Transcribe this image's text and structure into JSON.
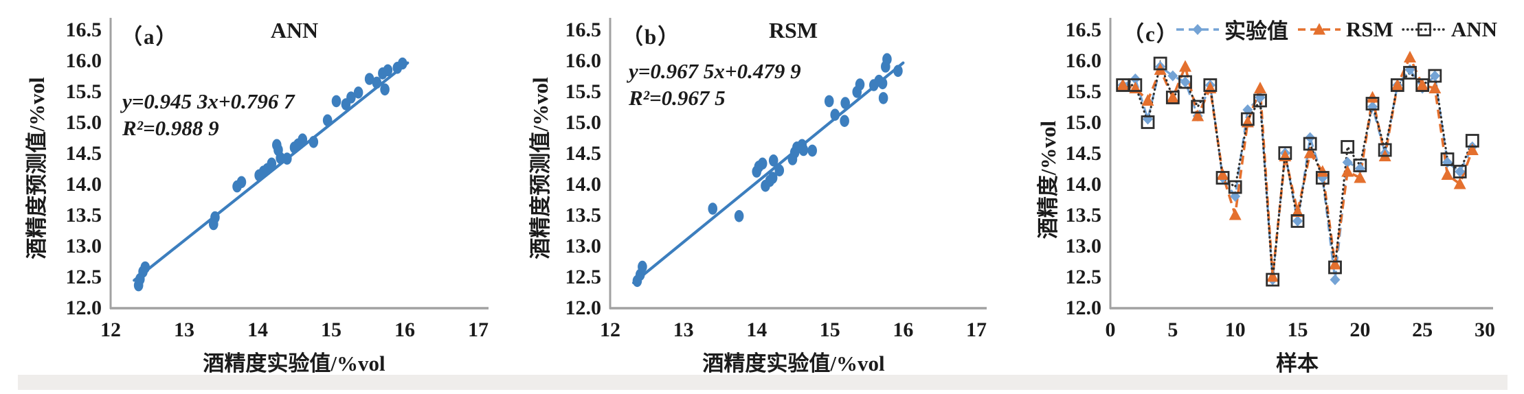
{
  "colors": {
    "axis": "#a2a2a2",
    "text": "#1b1b1b",
    "scatter_blue": "#3c7ebe",
    "experimental_blue": "#74a3d5",
    "rsm_orange": "#e4702e",
    "ann_dark": "#2e2e2e"
  },
  "chart_data": [
    {
      "type": "scatter",
      "panel_label": "（a）",
      "title": "ANN",
      "equation": "y=0.945 3x+0.796 7",
      "r_squared": "R²=0.988 9",
      "xlabel": "酒精度实验值/%vol",
      "ylabel": "酒精度预测值/%vol",
      "xlim": [
        12,
        17
      ],
      "ylim": [
        12.0,
        16.5
      ],
      "xticks": [
        12,
        13,
        14,
        15,
        16,
        17
      ],
      "yticks": [
        12.0,
        12.5,
        13.0,
        13.5,
        14.0,
        14.5,
        15.0,
        15.5,
        16.0,
        16.5
      ],
      "marker_color": "#3c7ebe",
      "line_color": "#3c7ebe",
      "trendline": {
        "x1": 12.32,
        "y1": 12.44,
        "x2": 16.04,
        "y2": 15.96
      },
      "points": [
        [
          12.38,
          12.36
        ],
        [
          12.4,
          12.46
        ],
        [
          12.44,
          12.58
        ],
        [
          12.47,
          12.65
        ],
        [
          13.4,
          13.35
        ],
        [
          13.42,
          13.46
        ],
        [
          13.72,
          13.96
        ],
        [
          13.78,
          14.03
        ],
        [
          14.02,
          14.14
        ],
        [
          14.08,
          14.2
        ],
        [
          14.13,
          14.24
        ],
        [
          14.19,
          14.33
        ],
        [
          14.26,
          14.63
        ],
        [
          14.28,
          14.55
        ],
        [
          14.31,
          14.42
        ],
        [
          14.4,
          14.41
        ],
        [
          14.5,
          14.59
        ],
        [
          14.55,
          14.64
        ],
        [
          14.61,
          14.72
        ],
        [
          14.76,
          14.68
        ],
        [
          14.95,
          15.03
        ],
        [
          15.07,
          15.34
        ],
        [
          15.2,
          15.29
        ],
        [
          15.27,
          15.4
        ],
        [
          15.37,
          15.48
        ],
        [
          15.52,
          15.7
        ],
        [
          15.62,
          15.64
        ],
        [
          15.7,
          15.79
        ],
        [
          15.73,
          15.53
        ],
        [
          15.77,
          15.84
        ],
        [
          15.9,
          15.88
        ],
        [
          15.97,
          15.95
        ]
      ]
    },
    {
      "type": "scatter",
      "panel_label": "（b）",
      "title": "RSM",
      "equation": "y=0.967 5x+0.479 9",
      "r_squared": "R²=0.967 5",
      "xlabel": "酒精度实验值/%vol",
      "ylabel": "酒精度预测值/%vol",
      "xlim": [
        12,
        17
      ],
      "ylim": [
        12.0,
        16.5
      ],
      "xticks": [
        12,
        13,
        14,
        15,
        16,
        17
      ],
      "yticks": [
        12.0,
        12.5,
        13.0,
        13.5,
        14.0,
        14.5,
        15.0,
        15.5,
        16.0,
        16.5
      ],
      "marker_color": "#3c7ebe",
      "line_color": "#3c7ebe",
      "trendline": {
        "x1": 12.32,
        "y1": 12.4,
        "x2": 16.0,
        "y2": 15.96
      },
      "points": [
        [
          12.37,
          12.43
        ],
        [
          12.41,
          12.53
        ],
        [
          12.44,
          12.66
        ],
        [
          13.4,
          13.6
        ],
        [
          13.76,
          13.48
        ],
        [
          14.0,
          14.2
        ],
        [
          14.03,
          14.28
        ],
        [
          14.08,
          14.33
        ],
        [
          14.12,
          13.97
        ],
        [
          14.18,
          14.05
        ],
        [
          14.22,
          14.1
        ],
        [
          14.23,
          14.38
        ],
        [
          14.31,
          14.22
        ],
        [
          14.49,
          14.4
        ],
        [
          14.52,
          14.51
        ],
        [
          14.55,
          14.59
        ],
        [
          14.62,
          14.63
        ],
        [
          14.64,
          14.55
        ],
        [
          14.76,
          14.54
        ],
        [
          14.99,
          15.34
        ],
        [
          15.07,
          15.12
        ],
        [
          15.2,
          15.02
        ],
        [
          15.21,
          15.31
        ],
        [
          15.37,
          15.49
        ],
        [
          15.41,
          15.61
        ],
        [
          15.6,
          15.6
        ],
        [
          15.67,
          15.67
        ],
        [
          15.72,
          15.63
        ],
        [
          15.73,
          15.39
        ],
        [
          15.76,
          15.9
        ],
        [
          15.78,
          16.02
        ],
        [
          15.93,
          15.83
        ]
      ]
    },
    {
      "type": "line",
      "panel_label": "（c）",
      "xlabel": "样本",
      "ylabel": "酒精度/%vol",
      "xlim": [
        0,
        30
      ],
      "ylim": [
        12.0,
        16.5
      ],
      "xticks": [
        0,
        5,
        10,
        15,
        20,
        25,
        30
      ],
      "yticks": [
        12.0,
        12.5,
        13.0,
        13.5,
        14.0,
        14.5,
        15.0,
        15.5,
        16.0,
        16.5
      ],
      "x": [
        1,
        2,
        3,
        4,
        5,
        6,
        7,
        8,
        9,
        10,
        11,
        12,
        13,
        14,
        15,
        16,
        17,
        18,
        19,
        20,
        21,
        22,
        23,
        24,
        25,
        26,
        27,
        28,
        29
      ],
      "series": [
        {
          "name": "实验值",
          "color": "#74a3d5",
          "marker": "diamond",
          "dash": "dash",
          "values": [
            15.6,
            15.7,
            15.05,
            15.9,
            15.75,
            15.65,
            15.1,
            15.6,
            14.1,
            13.8,
            15.2,
            15.4,
            12.45,
            14.5,
            13.4,
            14.75,
            14.1,
            12.45,
            14.35,
            14.25,
            15.25,
            14.5,
            15.6,
            15.85,
            15.55,
            15.75,
            14.35,
            14.2,
            14.6
          ]
        },
        {
          "name": "RSM",
          "color": "#e4702e",
          "marker": "triangle",
          "dash": "dash",
          "values": [
            15.6,
            15.55,
            15.35,
            15.85,
            15.4,
            15.9,
            15.1,
            15.55,
            14.15,
            13.5,
            15.0,
            15.55,
            12.5,
            14.45,
            13.55,
            14.5,
            14.2,
            12.7,
            14.2,
            14.1,
            15.4,
            14.45,
            15.6,
            16.05,
            15.6,
            15.55,
            14.15,
            14.0,
            14.55
          ]
        },
        {
          "name": "ANN",
          "color": "#2e2e2e",
          "marker": "square-open",
          "dash": "dot",
          "values": [
            15.6,
            15.6,
            15.0,
            15.95,
            15.4,
            15.65,
            15.25,
            15.6,
            14.1,
            13.95,
            15.05,
            15.35,
            12.45,
            14.5,
            13.4,
            14.65,
            14.1,
            12.65,
            14.6,
            14.3,
            15.3,
            14.55,
            15.6,
            15.8,
            15.6,
            15.75,
            14.4,
            14.2,
            14.7
          ]
        }
      ],
      "legend_position": "top"
    }
  ]
}
